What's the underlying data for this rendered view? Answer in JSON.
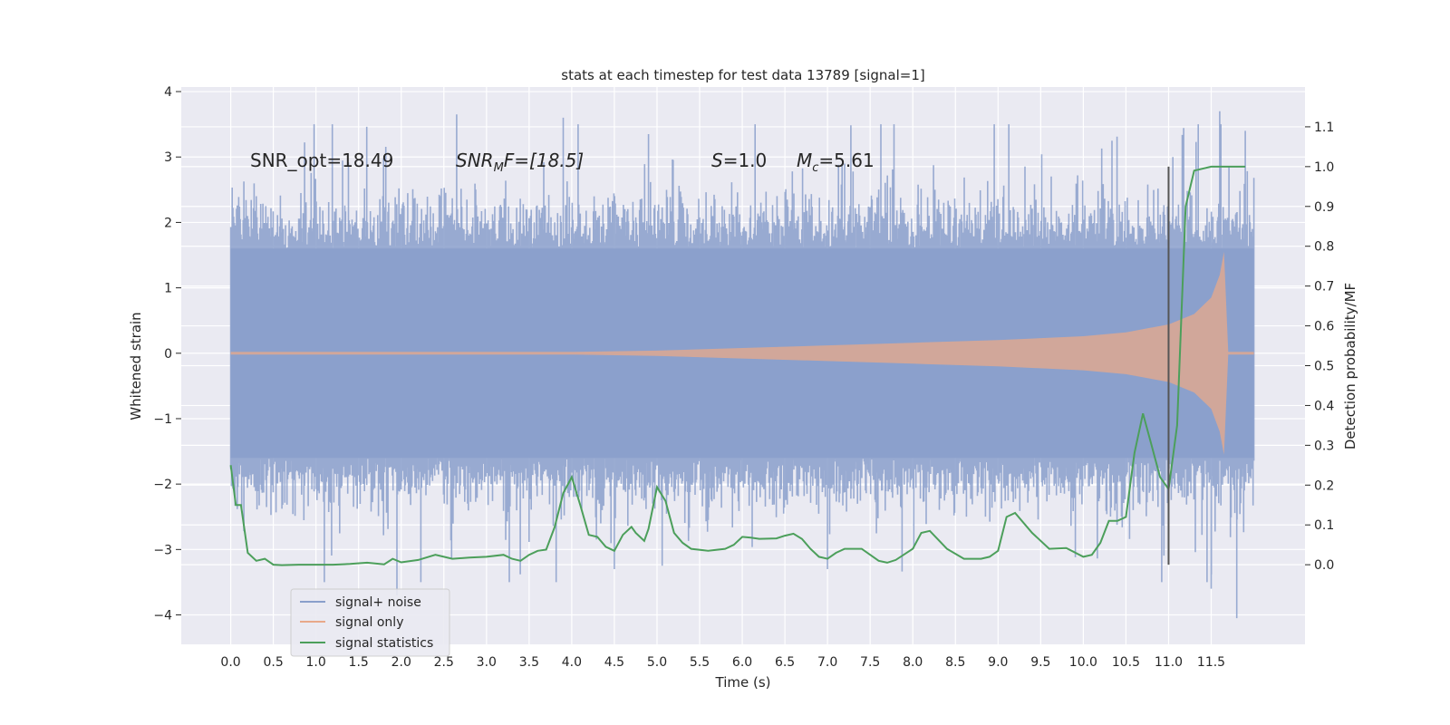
{
  "chart_data": {
    "type": "line",
    "title": "stats at each timestep for test data 13789 [signal=1]",
    "xlabel": "Time (s)",
    "ylabel": "Whitened strain",
    "y2label": "Detection probability/MF",
    "xlim": [
      -0.58,
      12.6
    ],
    "ylim": [
      -4.45,
      4.07
    ],
    "y2lim": [
      -0.2,
      1.2
    ],
    "xticks": [
      0.0,
      0.5,
      1.0,
      1.5,
      2.0,
      2.5,
      3.0,
      3.5,
      4.0,
      4.5,
      5.0,
      5.5,
      6.0,
      6.5,
      7.0,
      7.5,
      8.0,
      8.5,
      9.0,
      9.5,
      10.0,
      10.5,
      11.0,
      11.5
    ],
    "xtick_labels": [
      "0.0",
      "0.5",
      "1.0",
      "1.5",
      "2.0",
      "2.5",
      "3.0",
      "3.5",
      "4.0",
      "4.5",
      "5.0",
      "5.5",
      "6.0",
      "6.5",
      "7.0",
      "7.5",
      "8.0",
      "8.5",
      "9.0",
      "9.5",
      "10.0",
      "10.5",
      "11.0",
      "11.5"
    ],
    "yticks": [
      -4,
      -3,
      -2,
      -1,
      0,
      1,
      2,
      3,
      4
    ],
    "ytick_labels": [
      "−4",
      "−3",
      "−2",
      "−1",
      "0",
      "1",
      "2",
      "3",
      "4"
    ],
    "y2ticks": [
      0.0,
      0.1,
      0.2,
      0.3,
      0.4,
      0.5,
      0.6,
      0.7,
      0.8,
      0.9,
      1.0,
      1.1
    ],
    "y2tick_labels": [
      "0.0",
      "0.1",
      "0.2",
      "0.3",
      "0.4",
      "0.5",
      "0.6",
      "0.7",
      "0.8",
      "0.9",
      "1.0",
      "1.1"
    ],
    "legend_position": "lower-left",
    "legend": [
      {
        "label": "signal+ noise",
        "color": "#8a9fcb"
      },
      {
        "label": "signal only",
        "color": "#e8a98a"
      },
      {
        "label": "signal statistics",
        "color": "#4c9f5b"
      }
    ],
    "annotations": {
      "snr_opt": "SNR_opt=18.49",
      "snr_mf_main": "SNR",
      "snr_mf_sub": "M",
      "snr_mf_rest": "F=[18.5]",
      "s_var": "S",
      "s_rest": "=1.0",
      "mc_var": "M",
      "mc_sub": "c",
      "mc_rest": "=5.61"
    },
    "marker_time": 11.0,
    "series": [
      {
        "name": "signal+ noise",
        "color": "#8a9fcb",
        "axis": "left",
        "description": "Gaussian whitened noise plus signal, sampled 0 to 12 s",
        "x_range": [
          0.0,
          12.0
        ],
        "core_amplitude": 1.6,
        "peaks": [
          [
            0.3,
            2.4
          ],
          [
            2.65,
            3.65
          ],
          [
            3.9,
            3.6
          ],
          [
            4.9,
            3.35
          ],
          [
            7.2,
            2.9
          ],
          [
            11.05,
            3.0
          ],
          [
            11.6,
            3.7
          ],
          [
            11.9,
            3.4
          ],
          [
            1.95,
            -3.7
          ],
          [
            11.8,
            -4.05
          ],
          [
            4.5,
            -3.3
          ],
          [
            7.0,
            -3.3
          ],
          [
            11.5,
            -3.6
          ]
        ]
      },
      {
        "name": "signal only",
        "color": "#e8a98a",
        "axis": "left",
        "description": "chirp signal envelope",
        "x_envelope": [
          0.0,
          4.0,
          5.0,
          6.0,
          7.0,
          8.0,
          9.0,
          10.0,
          10.5,
          11.0,
          11.3,
          11.5,
          11.6,
          11.65,
          11.7,
          12.0
        ],
        "envelope": [
          0.02,
          0.02,
          0.04,
          0.08,
          0.12,
          0.16,
          0.2,
          0.26,
          0.32,
          0.44,
          0.6,
          0.85,
          1.2,
          1.55,
          0.02,
          0.02
        ]
      },
      {
        "name": "signal statistics",
        "color": "#4c9f5b",
        "axis": "right",
        "x": [
          0.0,
          0.06,
          0.12,
          0.2,
          0.3,
          0.4,
          0.5,
          0.6,
          0.8,
          1.0,
          1.2,
          1.4,
          1.6,
          1.8,
          1.9,
          2.0,
          2.2,
          2.4,
          2.5,
          2.6,
          2.8,
          3.0,
          3.2,
          3.3,
          3.4,
          3.5,
          3.6,
          3.7,
          3.8,
          3.9,
          4.0,
          4.1,
          4.2,
          4.3,
          4.4,
          4.5,
          4.6,
          4.7,
          4.75,
          4.85,
          4.9,
          5.0,
          5.1,
          5.2,
          5.3,
          5.4,
          5.6,
          5.8,
          5.9,
          6.0,
          6.1,
          6.2,
          6.4,
          6.5,
          6.6,
          6.7,
          6.8,
          6.9,
          7.0,
          7.1,
          7.2,
          7.4,
          7.5,
          7.6,
          7.7,
          7.8,
          8.0,
          8.1,
          8.2,
          8.4,
          8.6,
          8.8,
          8.9,
          9.0,
          9.1,
          9.2,
          9.4,
          9.6,
          9.8,
          10.0,
          10.1,
          10.2,
          10.3,
          10.4,
          10.5,
          10.6,
          10.7,
          10.8,
          10.9,
          11.0,
          11.1,
          11.2,
          11.3,
          11.5,
          11.9
        ],
        "values": [
          0.25,
          0.15,
          0.15,
          0.03,
          0.01,
          0.015,
          0.0,
          -0.001,
          0.0,
          0.0,
          0.0,
          0.002,
          0.005,
          0.001,
          0.015,
          0.006,
          0.012,
          0.025,
          0.02,
          0.015,
          0.018,
          0.02,
          0.025,
          0.015,
          0.01,
          0.025,
          0.035,
          0.038,
          0.095,
          0.18,
          0.22,
          0.15,
          0.075,
          0.07,
          0.045,
          0.035,
          0.075,
          0.095,
          0.08,
          0.06,
          0.09,
          0.195,
          0.16,
          0.08,
          0.055,
          0.04,
          0.035,
          0.04,
          0.05,
          0.07,
          0.068,
          0.065,
          0.066,
          0.073,
          0.078,
          0.065,
          0.04,
          0.02,
          0.015,
          0.03,
          0.04,
          0.04,
          0.025,
          0.01,
          0.005,
          0.012,
          0.04,
          0.08,
          0.085,
          0.04,
          0.015,
          0.015,
          0.02,
          0.035,
          0.12,
          0.13,
          0.08,
          0.04,
          0.042,
          0.02,
          0.025,
          0.055,
          0.11,
          0.11,
          0.12,
          0.28,
          0.38,
          0.3,
          0.22,
          0.19,
          0.35,
          0.9,
          0.99,
          1.0,
          1.0
        ]
      }
    ]
  }
}
